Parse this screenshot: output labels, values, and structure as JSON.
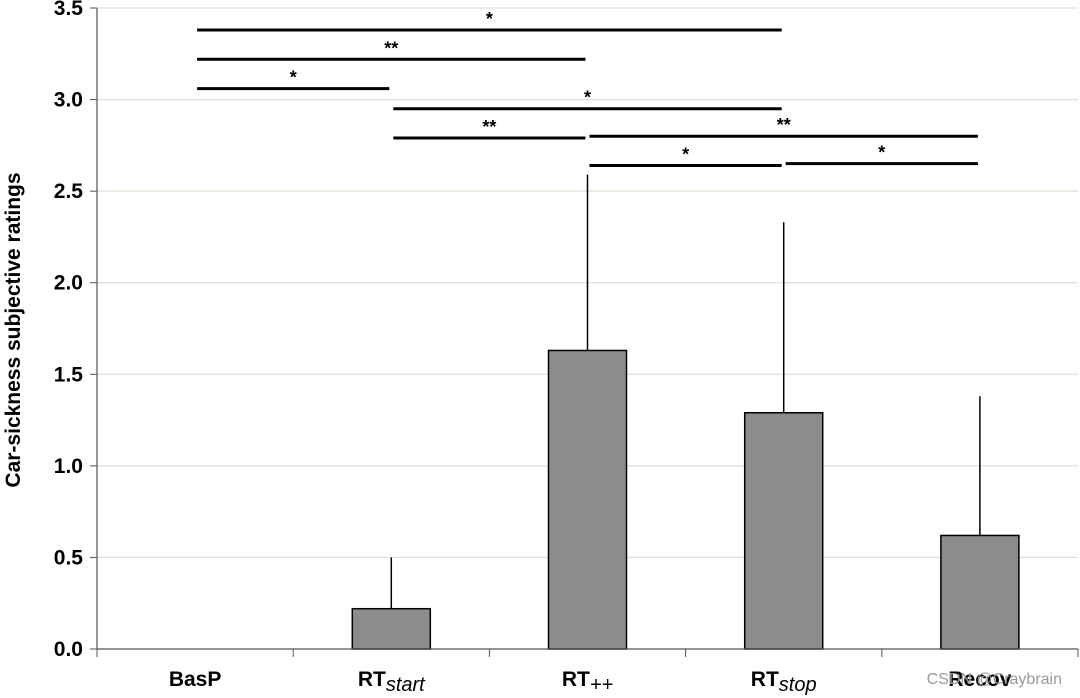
{
  "chart_data": {
    "type": "bar",
    "title": "",
    "xlabel": "",
    "ylabel": "Car-sickness subjective ratings",
    "ylim": [
      0,
      3.5
    ],
    "yticks": [
      "0.0",
      "0.5",
      "1.0",
      "1.5",
      "2.0",
      "2.5",
      "3.0",
      "3.5"
    ],
    "grid": true,
    "categories": [
      {
        "main": "BasP",
        "sub": ""
      },
      {
        "main": "RT",
        "sub": "start"
      },
      {
        "main": "RT",
        "sub": "++"
      },
      {
        "main": "RT",
        "sub": "stop"
      },
      {
        "main": "Recov",
        "sub": ""
      }
    ],
    "series": [
      {
        "values": [
          0.0,
          0.22,
          1.63,
          1.29,
          0.62
        ],
        "error_upper": [
          0.0,
          0.28,
          0.96,
          1.04,
          0.76
        ],
        "color": "#8c8c8c"
      }
    ],
    "significance": [
      {
        "from": 0,
        "to": 3,
        "y": 3.38,
        "label": "*"
      },
      {
        "from": 0,
        "to": 2,
        "y": 3.22,
        "label": "**"
      },
      {
        "from": 0,
        "to": 1,
        "y": 3.06,
        "label": "*"
      },
      {
        "from": 1,
        "to": 3,
        "y": 2.95,
        "label": "*"
      },
      {
        "from": 1,
        "to": 2,
        "y": 2.79,
        "label": "**"
      },
      {
        "from": 2,
        "to": 4,
        "y": 2.8,
        "label": "**"
      },
      {
        "from": 2,
        "to": 3,
        "y": 2.64,
        "label": "*"
      },
      {
        "from": 3,
        "to": 4,
        "y": 2.65,
        "label": "*"
      }
    ]
  },
  "watermark": "CSDN @Craybrain"
}
